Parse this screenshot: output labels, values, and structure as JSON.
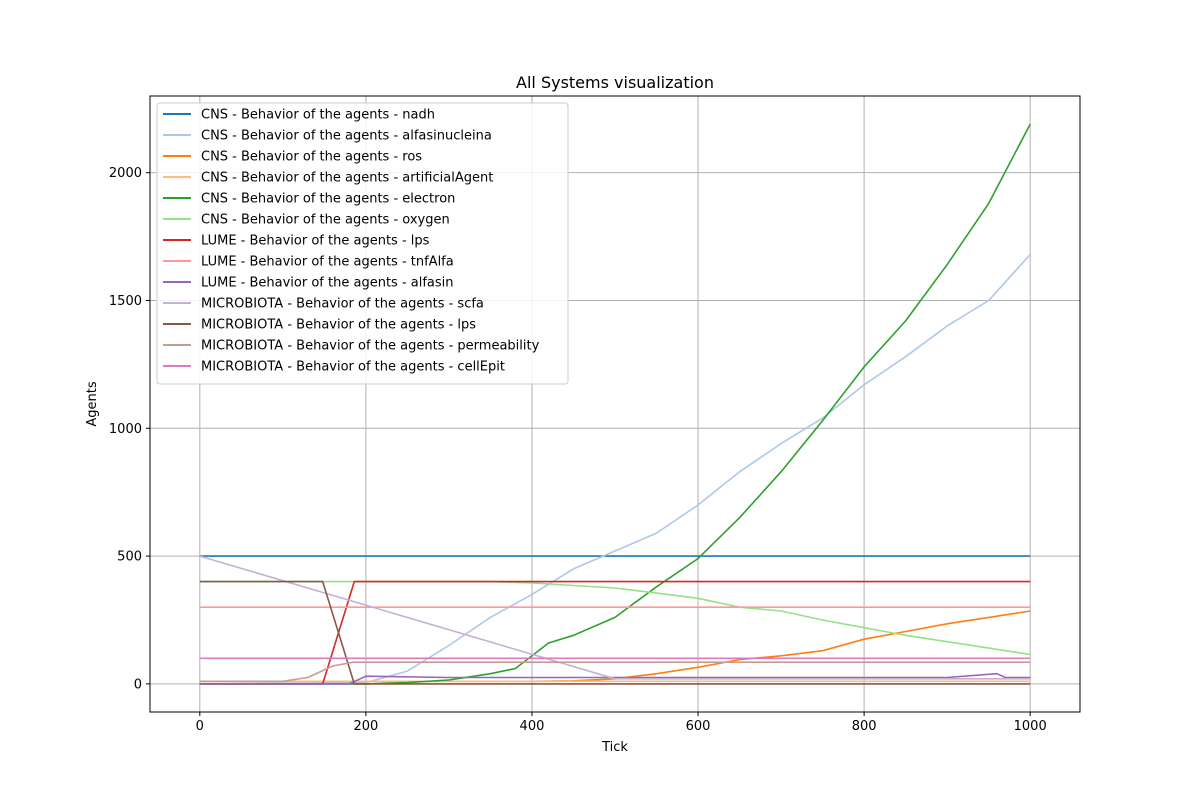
{
  "chart_data": {
    "type": "line",
    "title": "All Systems visualization",
    "xlabel": "Tick",
    "ylabel": "Agents",
    "xlim": [
      -60,
      1060
    ],
    "ylim": [
      -110,
      2300
    ],
    "xticks": [
      0,
      200,
      400,
      600,
      800,
      1000
    ],
    "yticks": [
      0,
      500,
      1000,
      1500,
      2000
    ],
    "grid": true,
    "legend_position": "upper-left",
    "series": [
      {
        "name": "CNS - Behavior of the agents - nadh",
        "color": "#1f77b4",
        "points": [
          [
            0,
            500
          ],
          [
            1000,
            500
          ]
        ]
      },
      {
        "name": "CNS - Behavior of the agents - alfasinucleina",
        "color": "#aec7e8",
        "points": [
          [
            0,
            0
          ],
          [
            200,
            5
          ],
          [
            250,
            50
          ],
          [
            300,
            150
          ],
          [
            350,
            260
          ],
          [
            400,
            350
          ],
          [
            450,
            450
          ],
          [
            500,
            520
          ],
          [
            550,
            590
          ],
          [
            600,
            700
          ],
          [
            650,
            830
          ],
          [
            700,
            940
          ],
          [
            750,
            1040
          ],
          [
            800,
            1170
          ],
          [
            850,
            1280
          ],
          [
            900,
            1400
          ],
          [
            950,
            1500
          ],
          [
            1000,
            1680
          ]
        ]
      },
      {
        "name": "CNS - Behavior of the agents - ros",
        "color": "#ff7f0e",
        "points": [
          [
            0,
            10
          ],
          [
            400,
            10
          ],
          [
            450,
            12
          ],
          [
            500,
            20
          ],
          [
            550,
            40
          ],
          [
            600,
            65
          ],
          [
            650,
            95
          ],
          [
            700,
            110
          ],
          [
            750,
            130
          ],
          [
            800,
            175
          ],
          [
            850,
            205
          ],
          [
            900,
            235
          ],
          [
            950,
            260
          ],
          [
            1000,
            285
          ]
        ]
      },
      {
        "name": "CNS - Behavior of the agents - artificialAgent",
        "color": "#ffbb78",
        "points": [
          [
            0,
            10
          ],
          [
            1000,
            10
          ]
        ]
      },
      {
        "name": "CNS - Behavior of the agents - electron",
        "color": "#2ca02c",
        "points": [
          [
            0,
            0
          ],
          [
            200,
            0
          ],
          [
            250,
            5
          ],
          [
            300,
            15
          ],
          [
            350,
            40
          ],
          [
            380,
            60
          ],
          [
            400,
            110
          ],
          [
            420,
            160
          ],
          [
            450,
            190
          ],
          [
            500,
            260
          ],
          [
            550,
            380
          ],
          [
            600,
            490
          ],
          [
            650,
            650
          ],
          [
            700,
            830
          ],
          [
            750,
            1030
          ],
          [
            800,
            1240
          ],
          [
            850,
            1420
          ],
          [
            900,
            1640
          ],
          [
            950,
            1880
          ],
          [
            1000,
            2190
          ]
        ]
      },
      {
        "name": "CNS - Behavior of the agents - oxygen",
        "color": "#98df8a",
        "points": [
          [
            0,
            400
          ],
          [
            350,
            400
          ],
          [
            400,
            395
          ],
          [
            450,
            385
          ],
          [
            500,
            375
          ],
          [
            550,
            355
          ],
          [
            600,
            335
          ],
          [
            650,
            300
          ],
          [
            700,
            285
          ],
          [
            750,
            250
          ],
          [
            800,
            220
          ],
          [
            850,
            190
          ],
          [
            900,
            165
          ],
          [
            950,
            140
          ],
          [
            1000,
            115
          ]
        ]
      },
      {
        "name": "LUME - Behavior of the agents - lps",
        "color": "#d62728",
        "points": [
          [
            0,
            0
          ],
          [
            148,
            0
          ],
          [
            186,
            400
          ],
          [
            1000,
            400
          ]
        ]
      },
      {
        "name": "LUME - Behavior of the agents - tnfAlfa",
        "color": "#ff9896",
        "points": [
          [
            0,
            300
          ],
          [
            1000,
            300
          ]
        ]
      },
      {
        "name": "LUME - Behavior of the agents - alfasin",
        "color": "#9467bd",
        "points": [
          [
            0,
            0
          ],
          [
            180,
            0
          ],
          [
            200,
            30
          ],
          [
            300,
            25
          ],
          [
            400,
            25
          ],
          [
            500,
            25
          ],
          [
            600,
            25
          ],
          [
            700,
            25
          ],
          [
            800,
            25
          ],
          [
            900,
            25
          ],
          [
            960,
            40
          ],
          [
            970,
            25
          ],
          [
            1000,
            25
          ]
        ]
      },
      {
        "name": "MICROBIOTA - Behavior of the agents - scfa",
        "color": "#c5b0d5",
        "points": [
          [
            0,
            500
          ],
          [
            500,
            20
          ],
          [
            1000,
            20
          ]
        ]
      },
      {
        "name": "MICROBIOTA - Behavior of the agents - lps",
        "color": "#8c564b",
        "points": [
          [
            0,
            400
          ],
          [
            148,
            400
          ],
          [
            186,
            0
          ],
          [
            1000,
            0
          ]
        ]
      },
      {
        "name": "MICROBIOTA - Behavior of the agents - permeability",
        "color": "#c49c94",
        "points": [
          [
            0,
            10
          ],
          [
            100,
            10
          ],
          [
            130,
            25
          ],
          [
            160,
            70
          ],
          [
            185,
            85
          ],
          [
            1000,
            85
          ]
        ]
      },
      {
        "name": "MICROBIOTA - Behavior of the agents - cellEpit",
        "color": "#e377c2",
        "points": [
          [
            0,
            100
          ],
          [
            1000,
            100
          ]
        ]
      }
    ]
  }
}
